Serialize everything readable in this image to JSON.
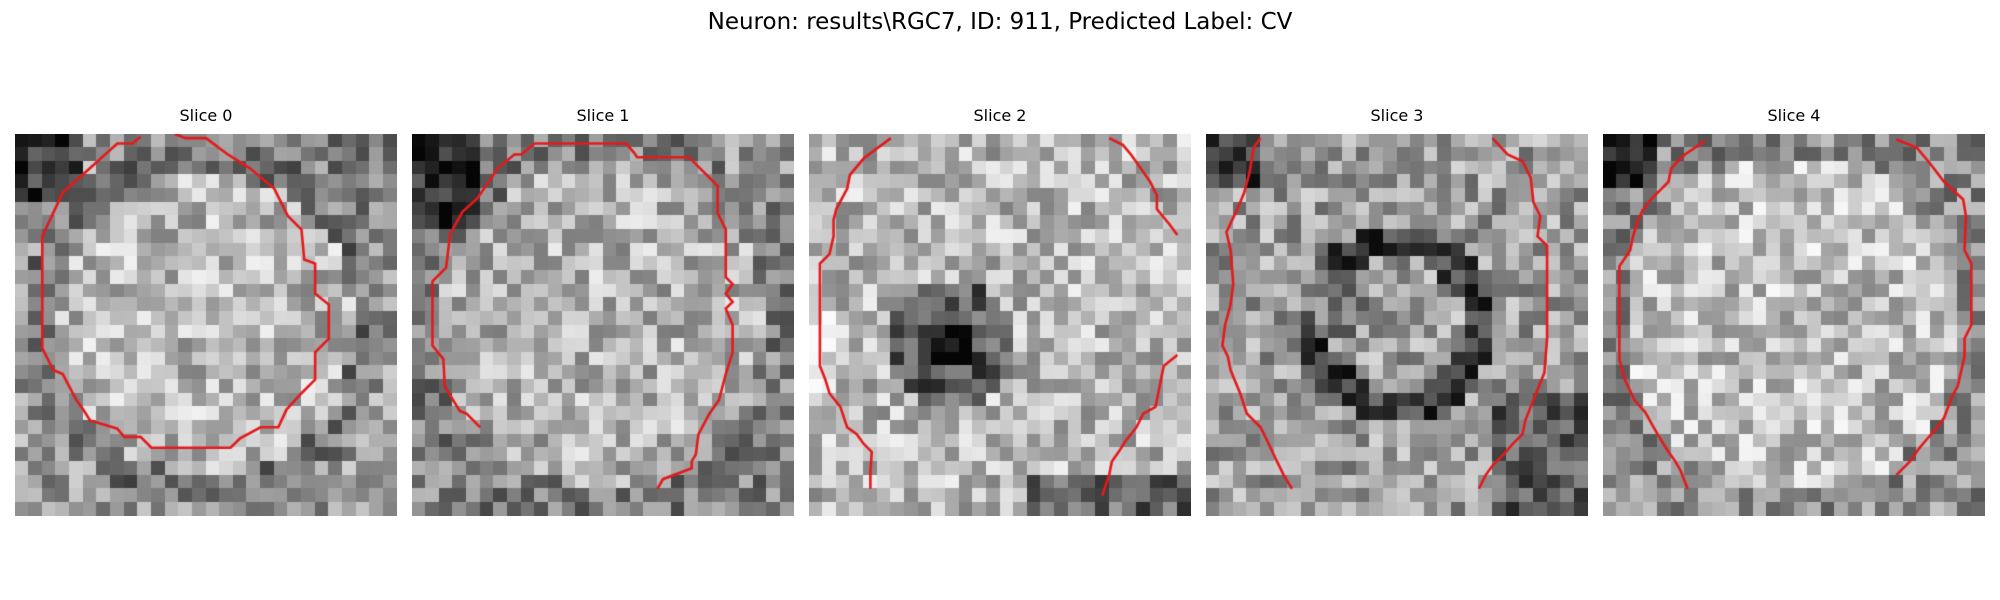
{
  "figure": {
    "title": "Neuron: results\\RGC7, ID: 911, Predicted Label: CV"
  },
  "contour_color": "#e41a1c",
  "image_colormap": "grayscale",
  "slices": [
    {
      "title": "Slice 0",
      "seed": 11,
      "texture": "bright-disc-dark-rim"
    },
    {
      "title": "Slice 1",
      "seed": 23,
      "texture": "bright-disc-dark-corners"
    },
    {
      "title": "Slice 2",
      "seed": 37,
      "texture": "bright-with-dark-center-spot"
    },
    {
      "title": "Slice 3",
      "seed": 51,
      "texture": "dark-ring-texture"
    },
    {
      "title": "Slice 4",
      "seed": 67,
      "texture": "bright-disc-dark-corner"
    }
  ]
}
